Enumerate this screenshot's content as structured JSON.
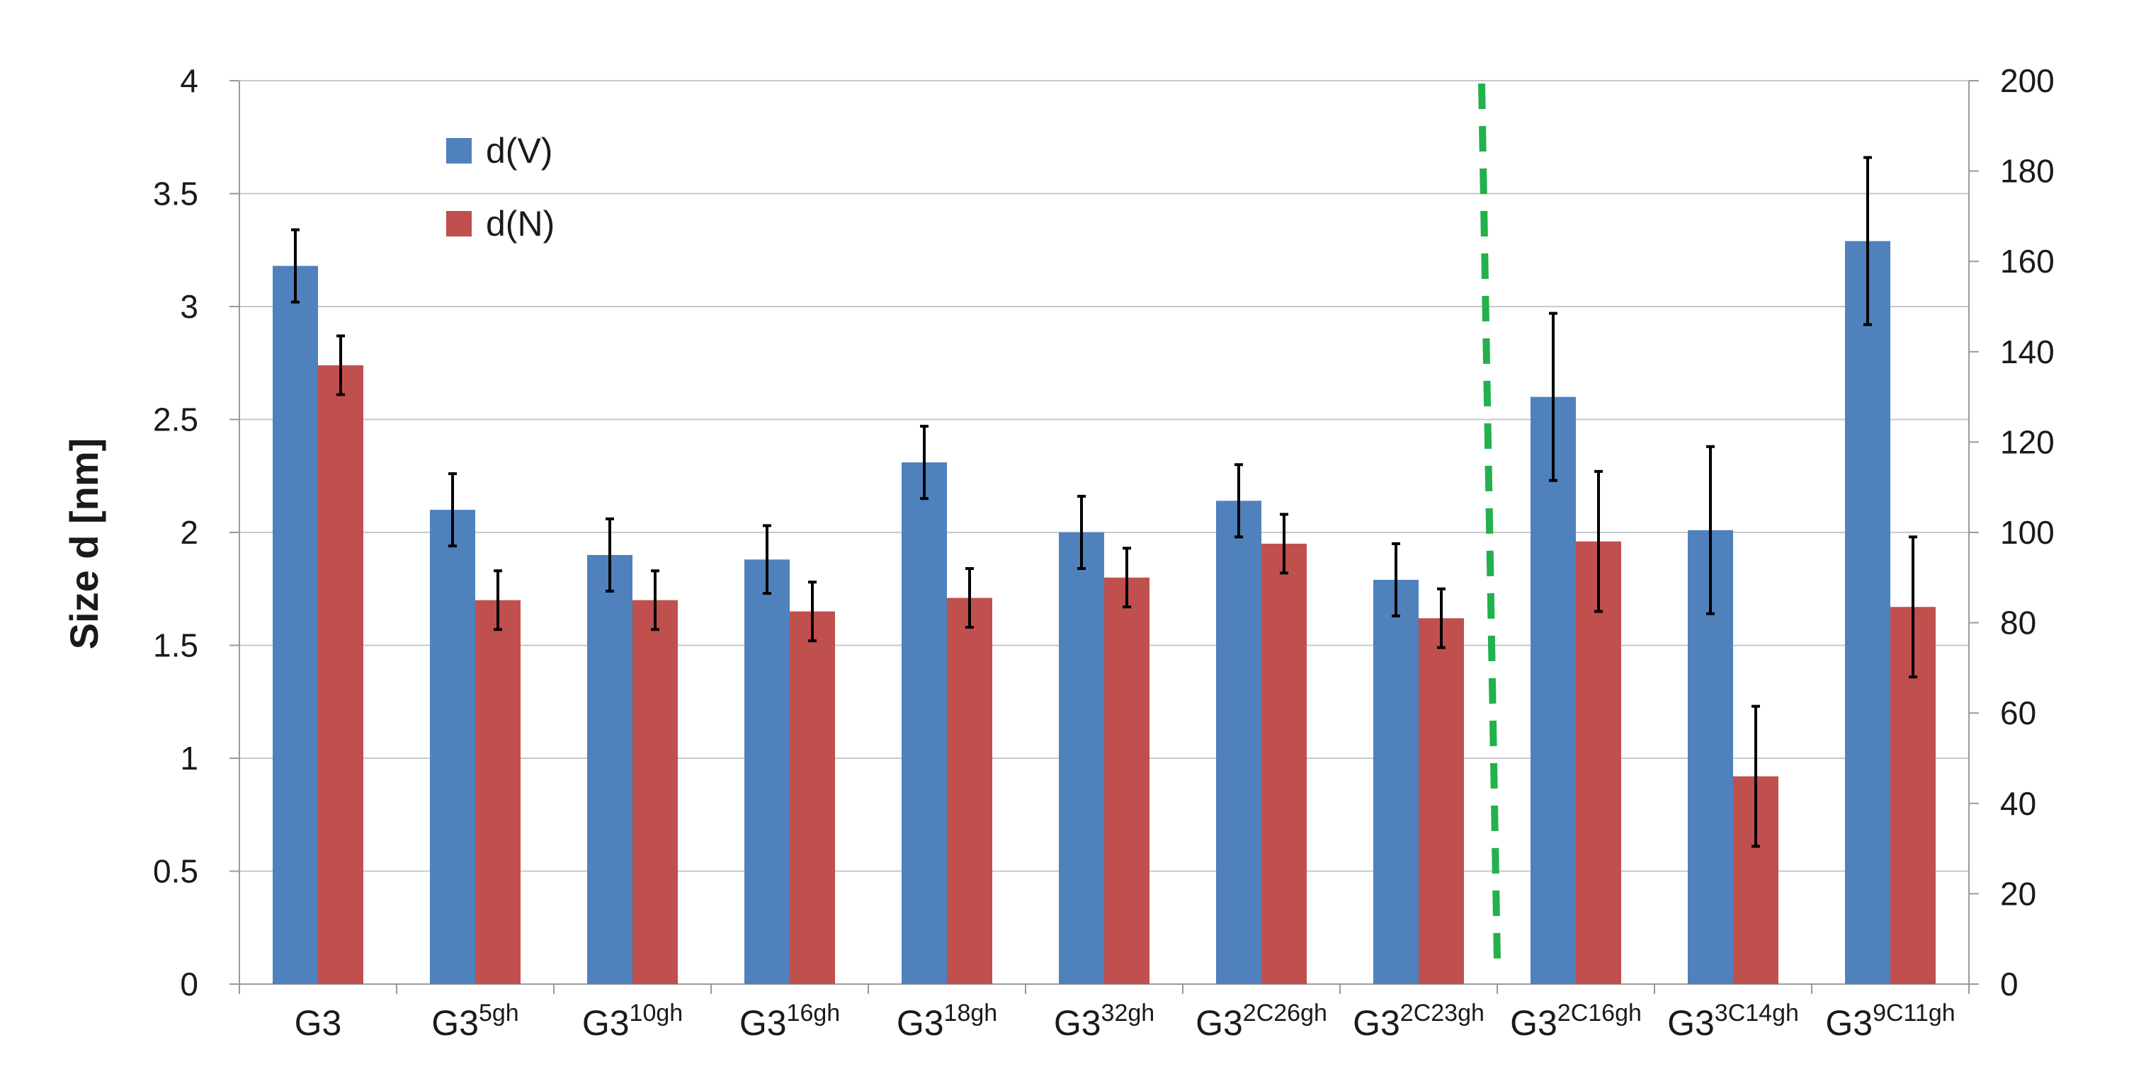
{
  "chart_data": {
    "type": "bar",
    "ylabel": "Size d [nm]",
    "ylim": [
      0,
      4
    ],
    "y_ticks": [
      "0",
      "0.5",
      "1",
      "1.5",
      "2",
      "2.5",
      "3",
      "3.5",
      "4"
    ],
    "y2lim": [
      0,
      200
    ],
    "y2_ticks": [
      "0",
      "20",
      "40",
      "60",
      "80",
      "100",
      "120",
      "140",
      "160",
      "180",
      "200"
    ],
    "grid": true,
    "legend_position": "top-left",
    "categories": [
      {
        "base": "G3",
        "sup": ""
      },
      {
        "base": "G3",
        "sup": "5gh"
      },
      {
        "base": "G3",
        "sup": "10gh"
      },
      {
        "base": "G3",
        "sup": "16gh"
      },
      {
        "base": "G3",
        "sup": "18gh"
      },
      {
        "base": "G3",
        "sup": "32gh"
      },
      {
        "base": "G3",
        "sup": "2C26gh"
      },
      {
        "base": "G3",
        "sup": "2C23gh"
      },
      {
        "base": "G3",
        "sup": "2C16gh"
      },
      {
        "base": "G3",
        "sup": "3C14gh"
      },
      {
        "base": "G3",
        "sup": "9C11gh"
      }
    ],
    "series": [
      {
        "name": "d(V)",
        "color": "#4F81BD",
        "values": [
          3.18,
          2.1,
          1.9,
          1.88,
          2.31,
          2.0,
          2.14,
          1.79,
          2.6,
          2.01,
          3.29
        ],
        "errors": [
          0.16,
          0.16,
          0.16,
          0.15,
          0.16,
          0.16,
          0.16,
          0.16,
          0.37,
          0.37,
          0.37
        ]
      },
      {
        "name": "d(N)",
        "color": "#C0504D",
        "values": [
          2.74,
          1.7,
          1.7,
          1.65,
          1.71,
          1.8,
          1.95,
          1.62,
          1.96,
          0.92,
          1.67
        ],
        "errors": [
          0.13,
          0.13,
          0.13,
          0.13,
          0.13,
          0.13,
          0.13,
          0.13,
          0.31,
          0.31,
          0.31
        ]
      }
    ],
    "divider": {
      "after_category_index": 7,
      "color": "#22B14C",
      "style": "dashed"
    }
  }
}
